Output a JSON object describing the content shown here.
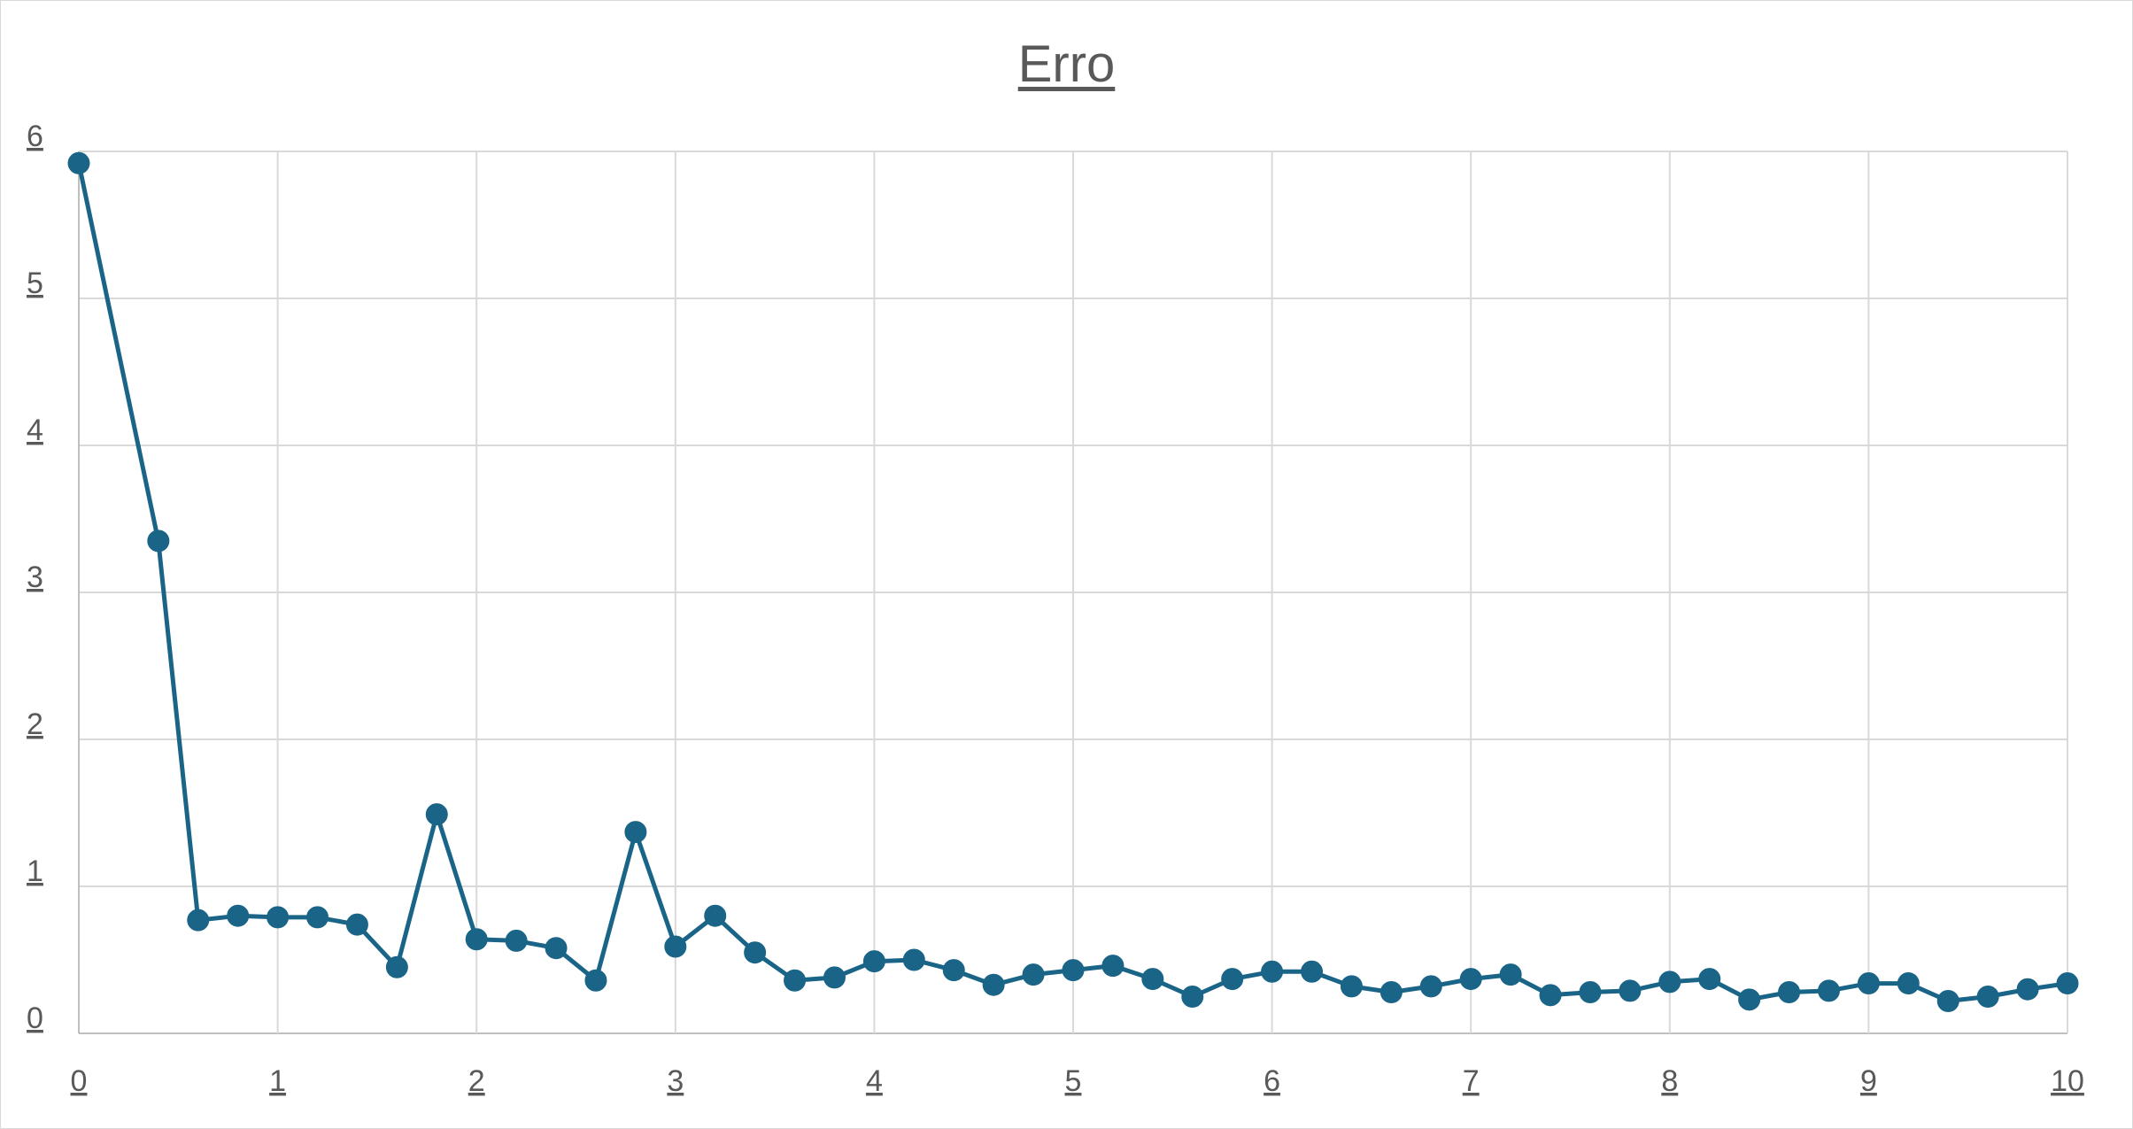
{
  "chart_data": {
    "type": "line",
    "title": "Erro",
    "xlabel": "",
    "ylabel": "",
    "xlim": [
      0,
      10
    ],
    "ylim": [
      0,
      6
    ],
    "x_ticks": [
      "0",
      "1",
      "2",
      "3",
      "4",
      "5",
      "6",
      "7",
      "8",
      "9",
      "10"
    ],
    "y_ticks": [
      "0",
      "1",
      "2",
      "3",
      "4",
      "5",
      "6"
    ],
    "grid": true,
    "legend": "none",
    "series": [
      {
        "color": "#1a6587",
        "marker": "circle",
        "points": [
          [
            0,
            5.92
          ],
          [
            0.4,
            3.35
          ],
          [
            0.6,
            0.77
          ],
          [
            0.8,
            0.8
          ],
          [
            1.0,
            0.79
          ],
          [
            1.2,
            0.79
          ],
          [
            1.4,
            0.74
          ],
          [
            1.6,
            0.45
          ],
          [
            1.8,
            1.49
          ],
          [
            2.0,
            0.64
          ],
          [
            2.2,
            0.63
          ],
          [
            2.4,
            0.58
          ],
          [
            2.6,
            0.36
          ],
          [
            2.8,
            1.37
          ],
          [
            3.0,
            0.59
          ],
          [
            3.2,
            0.8
          ],
          [
            3.4,
            0.55
          ],
          [
            3.6,
            0.36
          ],
          [
            3.8,
            0.38
          ],
          [
            4.0,
            0.49
          ],
          [
            4.2,
            0.5
          ],
          [
            4.4,
            0.43
          ],
          [
            4.6,
            0.33
          ],
          [
            4.8,
            0.4
          ],
          [
            5.0,
            0.43
          ],
          [
            5.2,
            0.46
          ],
          [
            5.4,
            0.37
          ],
          [
            5.6,
            0.25
          ],
          [
            5.8,
            0.37
          ],
          [
            6.0,
            0.42
          ],
          [
            6.2,
            0.42
          ],
          [
            6.4,
            0.32
          ],
          [
            6.6,
            0.28
          ],
          [
            6.8,
            0.32
          ],
          [
            7.0,
            0.37
          ],
          [
            7.2,
            0.4
          ],
          [
            7.4,
            0.26
          ],
          [
            7.6,
            0.28
          ],
          [
            7.8,
            0.29
          ],
          [
            8.0,
            0.35
          ],
          [
            8.2,
            0.37
          ],
          [
            8.4,
            0.23
          ],
          [
            8.6,
            0.28
          ],
          [
            8.8,
            0.29
          ],
          [
            9.0,
            0.34
          ],
          [
            9.2,
            0.34
          ],
          [
            9.4,
            0.22
          ],
          [
            9.6,
            0.25
          ],
          [
            9.8,
            0.3
          ],
          [
            10.0,
            0.34
          ]
        ]
      }
    ]
  }
}
